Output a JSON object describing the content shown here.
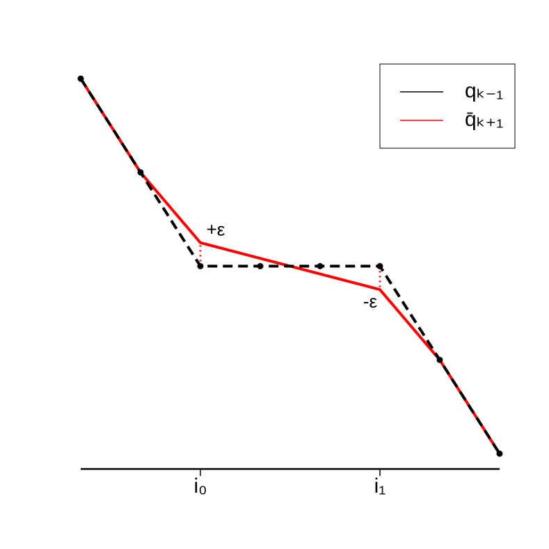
{
  "chart_data": {
    "type": "line",
    "x": [
      1,
      2,
      3,
      4,
      5,
      6,
      7,
      8
    ],
    "xlim": [
      1,
      8
    ],
    "ylim": [
      0,
      4
    ],
    "xticks": [
      {
        "value": 3,
        "label": "i₀"
      },
      {
        "value": 6,
        "label": "i₁"
      }
    ],
    "series": [
      {
        "name": "qₖ₋₁",
        "color": "#000000",
        "values": [
          4,
          3,
          2,
          2,
          2,
          2,
          1,
          0
        ]
      },
      {
        "name": "q̄ₖ₊₁",
        "color": "#ff0000",
        "values": [
          4,
          3,
          2.25,
          2.083,
          1.917,
          1.75,
          1,
          0
        ]
      }
    ],
    "annotations": [
      "+ε",
      "-ε"
    ],
    "legend": "top-right"
  }
}
